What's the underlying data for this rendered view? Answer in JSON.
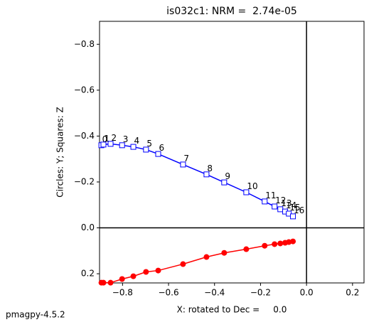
{
  "chart_data": {
    "type": "line",
    "title": "is032c1: NRM =  2.74e-05",
    "x_label": "X: rotated to Dec =     0.0",
    "y_label": "Circles: Y; Squares: Z",
    "footer": "pmagpy-4.5.2",
    "x": [
      -0.892,
      -0.883,
      -0.852,
      -0.802,
      -0.753,
      -0.698,
      -0.645,
      -0.537,
      -0.435,
      -0.358,
      -0.262,
      -0.182,
      -0.139,
      -0.114,
      -0.093,
      -0.077,
      -0.059
    ],
    "point_labels": [
      "0",
      "1",
      "2",
      "3",
      "4",
      "5",
      "6",
      "7",
      "8",
      "9",
      "10",
      "11",
      "12",
      "13",
      "14",
      "15",
      "16"
    ],
    "series": [
      {
        "marker": "circle",
        "color": "#ff0000",
        "values": [
          0.239,
          0.239,
          0.239,
          0.223,
          0.211,
          0.192,
          0.186,
          0.158,
          0.127,
          0.109,
          0.093,
          0.078,
          0.071,
          0.068,
          0.065,
          0.062,
          0.059
        ]
      },
      {
        "marker": "square",
        "color": "#0000ff",
        "values": [
          -0.36,
          -0.363,
          -0.366,
          -0.36,
          -0.353,
          -0.341,
          -0.322,
          -0.276,
          -0.233,
          -0.198,
          -0.155,
          -0.115,
          -0.093,
          -0.081,
          -0.071,
          -0.062,
          -0.05
        ]
      }
    ],
    "xlim": [
      -0.9,
      0.25
    ],
    "ylim": [
      0.24,
      -0.9
    ],
    "xticks": [
      {
        "value": -0.8,
        "label": "−0.8"
      },
      {
        "value": -0.6,
        "label": "−0.6"
      },
      {
        "value": -0.4,
        "label": "−0.4"
      },
      {
        "value": -0.2,
        "label": "−0.2"
      },
      {
        "value": 0,
        "label": "0.0"
      },
      0.2
    ],
    "yticks": [
      {
        "value": -0.8,
        "label": "−0.8"
      },
      {
        "value": -0.6,
        "label": "−0.6"
      },
      {
        "value": -0.4,
        "label": "−0.4"
      },
      {
        "value": -0.2,
        "label": "−0.2"
      },
      {
        "value": 0,
        "label": "0.0"
      },
      0.2
    ]
  }
}
